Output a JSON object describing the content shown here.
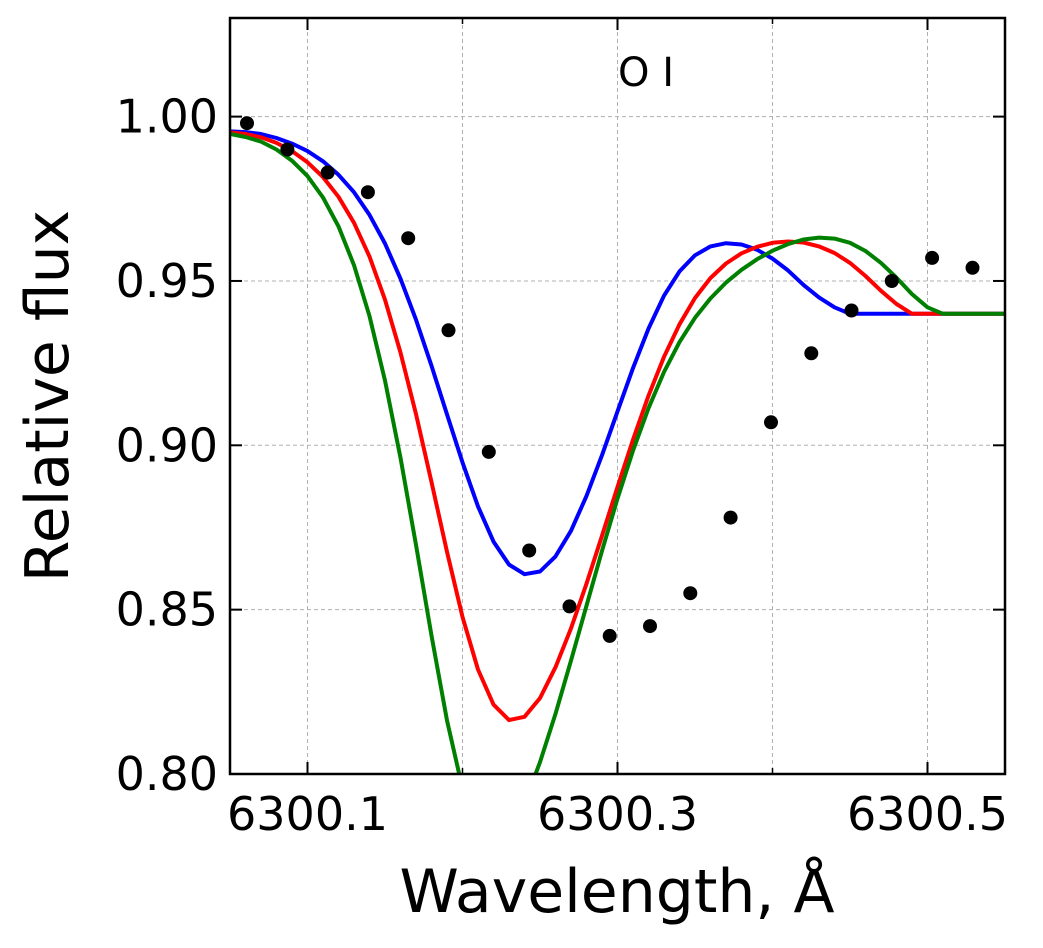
{
  "chart_data": {
    "type": "line",
    "annotation": "O I",
    "xlabel": "Wavelength, Å",
    "ylabel": "Relative flux",
    "xlim": [
      6300.05,
      6300.55
    ],
    "ylim": [
      0.8,
      1.03
    ],
    "xticks": [
      6300.1,
      6300.3,
      6300.5
    ],
    "xtick_labels": [
      "6300.1",
      "6300.3",
      "6300.5"
    ],
    "xminor": [
      6300.2,
      6300.4
    ],
    "yticks": [
      0.8,
      0.85,
      0.9,
      0.95,
      1.0
    ],
    "ytick_labels": [
      "0.80",
      "0.85",
      "0.90",
      "0.95",
      "1.00"
    ],
    "grid": true,
    "series": [
      {
        "kind": "scatter",
        "color": "#000000",
        "x": [
          6300.061,
          6300.087,
          6300.113,
          6300.139,
          6300.165,
          6300.191,
          6300.217,
          6300.243,
          6300.269,
          6300.295,
          6300.321,
          6300.347,
          6300.373,
          6300.399,
          6300.425,
          6300.451,
          6300.477,
          6300.503,
          6300.529
        ],
        "y": [
          0.998,
          0.99,
          0.983,
          0.977,
          0.963,
          0.935,
          0.898,
          0.868,
          0.851,
          0.842,
          0.845,
          0.855,
          0.878,
          0.907,
          0.928,
          0.941,
          0.95,
          0.957,
          0.954
        ]
      },
      {
        "kind": "line",
        "color": "#0000ff",
        "x": [
          6300.05,
          6300.06,
          6300.07,
          6300.08,
          6300.09,
          6300.1,
          6300.11,
          6300.12,
          6300.13,
          6300.14,
          6300.15,
          6300.16,
          6300.17,
          6300.18,
          6300.19,
          6300.2,
          6300.21,
          6300.22,
          6300.23,
          6300.24,
          6300.25,
          6300.26,
          6300.27,
          6300.28,
          6300.29,
          6300.3,
          6300.31,
          6300.32,
          6300.33,
          6300.34,
          6300.35,
          6300.36,
          6300.37,
          6300.38,
          6300.39,
          6300.4,
          6300.41,
          6300.42,
          6300.43,
          6300.44,
          6300.45,
          6300.46,
          6300.47,
          6300.48,
          6300.49,
          6300.5,
          6300.51,
          6300.52,
          6300.53,
          6300.54,
          6300.55
        ],
        "y": [
          0.9955,
          0.9953,
          0.9947,
          0.9935,
          0.9918,
          0.9895,
          0.9864,
          0.9823,
          0.977,
          0.9701,
          0.9614,
          0.9507,
          0.9382,
          0.9242,
          0.9094,
          0.8948,
          0.8814,
          0.8707,
          0.8637,
          0.8608,
          0.8616,
          0.8662,
          0.874,
          0.8846,
          0.897,
          0.9103,
          0.9235,
          0.9355,
          0.9455,
          0.9529,
          0.9578,
          0.9605,
          0.9615,
          0.9611,
          0.9595,
          0.9568,
          0.9532,
          0.9488,
          0.945,
          0.942,
          0.94,
          0.94,
          0.94,
          0.94,
          0.94,
          0.94,
          0.94,
          0.94,
          0.94,
          0.94,
          0.94
        ]
      },
      {
        "kind": "line",
        "color": "#ff0000",
        "x": [
          6300.05,
          6300.06,
          6300.07,
          6300.08,
          6300.09,
          6300.1,
          6300.11,
          6300.12,
          6300.13,
          6300.14,
          6300.15,
          6300.16,
          6300.17,
          6300.18,
          6300.19,
          6300.2,
          6300.21,
          6300.22,
          6300.23,
          6300.24,
          6300.25,
          6300.26,
          6300.27,
          6300.28,
          6300.29,
          6300.3,
          6300.31,
          6300.32,
          6300.33,
          6300.34,
          6300.35,
          6300.36,
          6300.37,
          6300.38,
          6300.39,
          6300.4,
          6300.41,
          6300.42,
          6300.43,
          6300.44,
          6300.45,
          6300.46,
          6300.47,
          6300.48,
          6300.49,
          6300.5,
          6300.51,
          6300.52,
          6300.53,
          6300.54,
          6300.55
        ],
        "y": [
          0.9952,
          0.9947,
          0.9937,
          0.992,
          0.9895,
          0.9861,
          0.9816,
          0.9756,
          0.9677,
          0.9574,
          0.9443,
          0.9282,
          0.9095,
          0.8888,
          0.8676,
          0.8478,
          0.8318,
          0.8211,
          0.8164,
          0.8174,
          0.8231,
          0.8325,
          0.8443,
          0.8579,
          0.8725,
          0.8873,
          0.9017,
          0.9151,
          0.9269,
          0.9368,
          0.9448,
          0.9509,
          0.9553,
          0.9584,
          0.9604,
          0.9616,
          0.962,
          0.9617,
          0.9605,
          0.9585,
          0.9555,
          0.9515,
          0.947,
          0.943,
          0.94,
          0.94,
          0.94,
          0.94,
          0.94,
          0.94,
          0.94
        ]
      },
      {
        "kind": "line",
        "color": "#008000",
        "x": [
          6300.05,
          6300.06,
          6300.07,
          6300.08,
          6300.09,
          6300.1,
          6300.11,
          6300.12,
          6300.13,
          6300.14,
          6300.15,
          6300.16,
          6300.17,
          6300.18,
          6300.19,
          6300.2,
          6300.21,
          6300.22,
          6300.23,
          6300.24,
          6300.25,
          6300.26,
          6300.27,
          6300.28,
          6300.29,
          6300.3,
          6300.31,
          6300.32,
          6300.33,
          6300.34,
          6300.35,
          6300.36,
          6300.37,
          6300.38,
          6300.39,
          6300.4,
          6300.41,
          6300.42,
          6300.43,
          6300.44,
          6300.45,
          6300.46,
          6300.47,
          6300.48,
          6300.49,
          6300.5,
          6300.51,
          6300.52,
          6300.53,
          6300.54,
          6300.55
        ],
        "y": [
          0.9947,
          0.9938,
          0.9924,
          0.99,
          0.9866,
          0.9819,
          0.9754,
          0.9666,
          0.9548,
          0.9393,
          0.9197,
          0.8962,
          0.8697,
          0.8421,
          0.8163,
          0.7956,
          0.7826,
          0.7785,
          0.7821,
          0.7911,
          0.8036,
          0.8183,
          0.8345,
          0.8512,
          0.8679,
          0.8838,
          0.8984,
          0.9113,
          0.9223,
          0.9314,
          0.9388,
          0.9447,
          0.9495,
          0.9534,
          0.9566,
          0.9592,
          0.9612,
          0.9626,
          0.9632,
          0.9629,
          0.9616,
          0.9591,
          0.9555,
          0.951,
          0.946,
          0.942,
          0.94,
          0.94,
          0.94,
          0.94,
          0.94
        ]
      }
    ]
  }
}
